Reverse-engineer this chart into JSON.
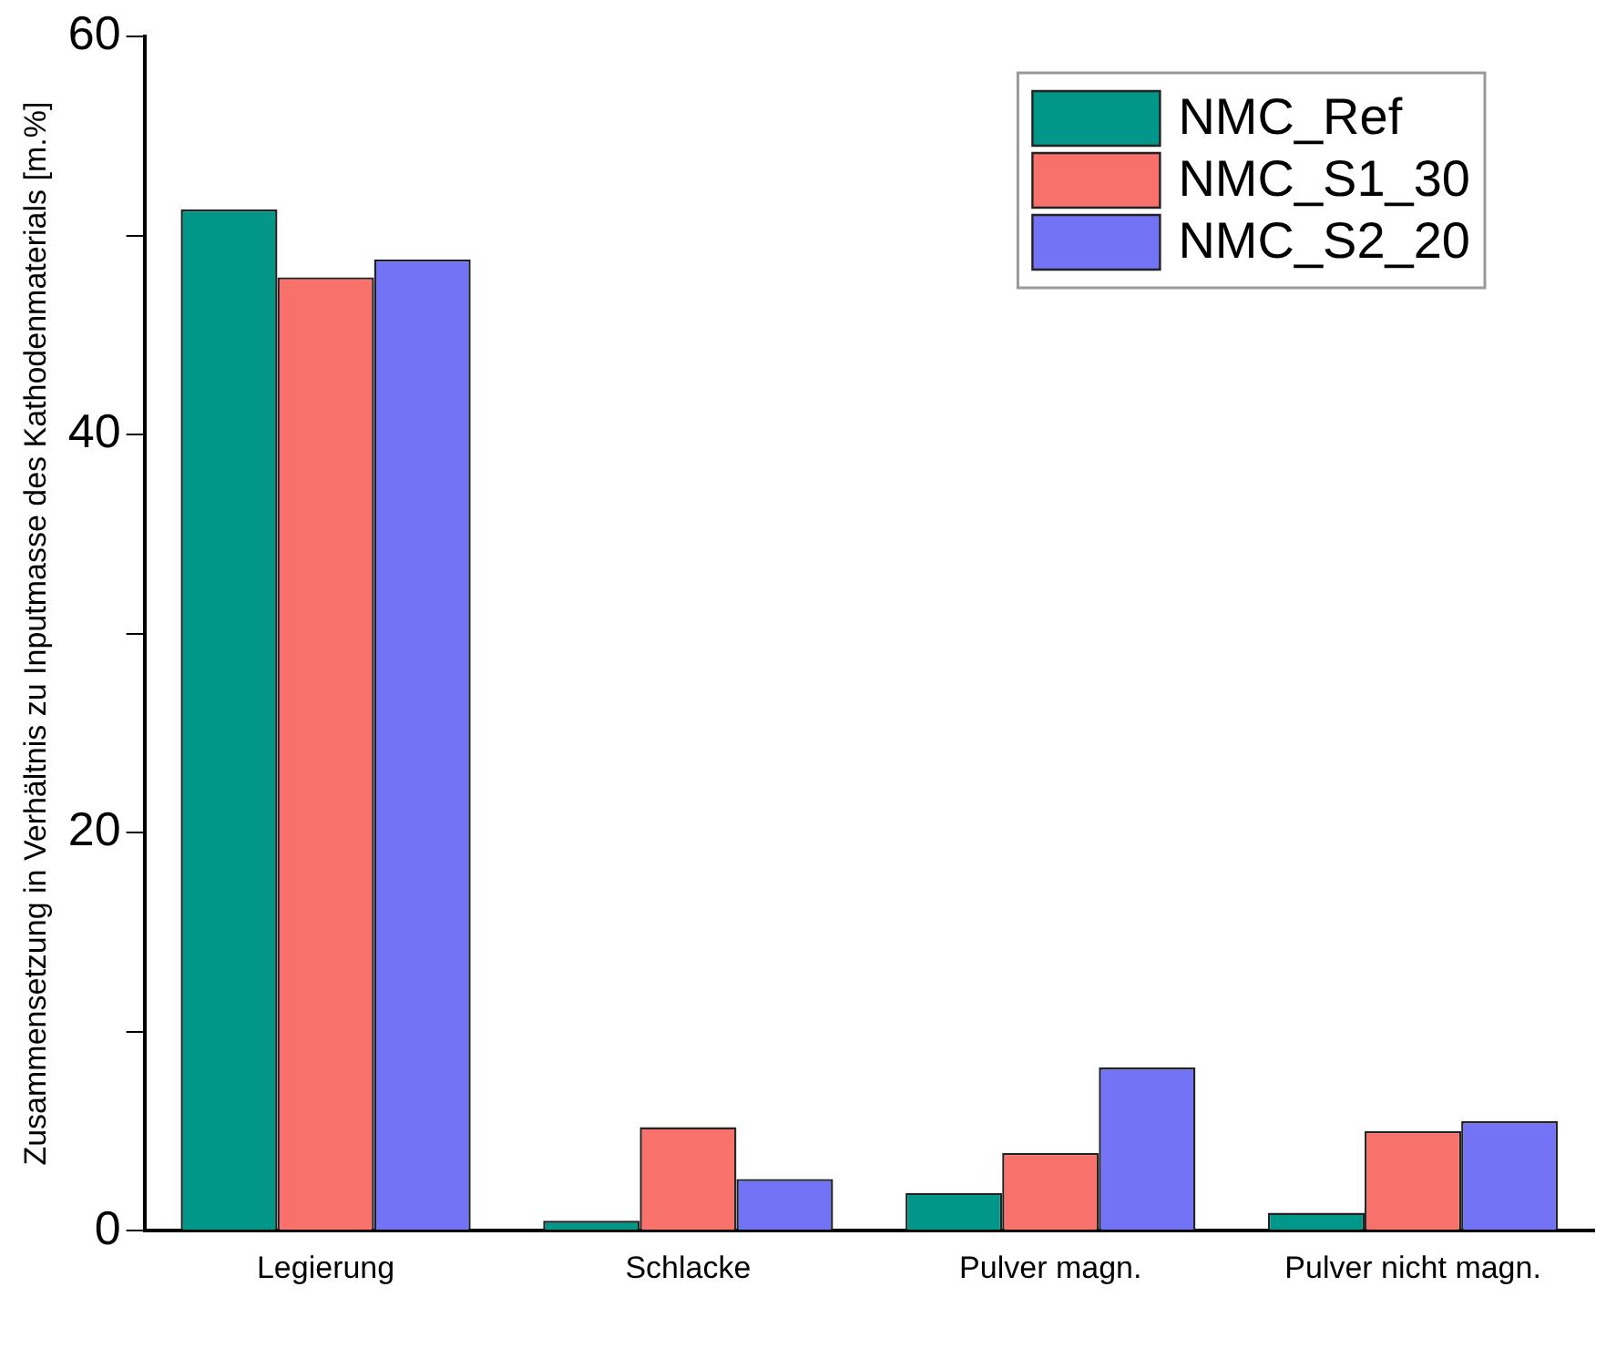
{
  "chart_data": {
    "type": "bar",
    "ylabel": "Zusammensetzung in Verhältnis zu Inputmasse des Kathodenmaterials [m.%]",
    "categories": [
      "Legierung",
      "Schlacke",
      "Pulver magn.",
      "Pulver nicht magn."
    ],
    "series": [
      {
        "name": "NMC_Ref",
        "color": "#009688",
        "values": [
          51.3,
          0.5,
          1.9,
          0.9
        ]
      },
      {
        "name": "NMC_S1_30",
        "color": "#f8716a",
        "values": [
          47.9,
          5.2,
          3.9,
          5.0
        ]
      },
      {
        "name": "NMC_S2_20",
        "color": "#7373f5",
        "values": [
          48.8,
          2.6,
          8.2,
          5.5
        ]
      }
    ],
    "ylim": [
      0,
      60
    ],
    "yticks": [
      0,
      {
        "value": 10,
        "label": null
      },
      20,
      {
        "value": 30,
        "label": null
      },
      40,
      {
        "value": 50,
        "label": null
      },
      60
    ],
    "grid": false,
    "legend": "top right"
  }
}
